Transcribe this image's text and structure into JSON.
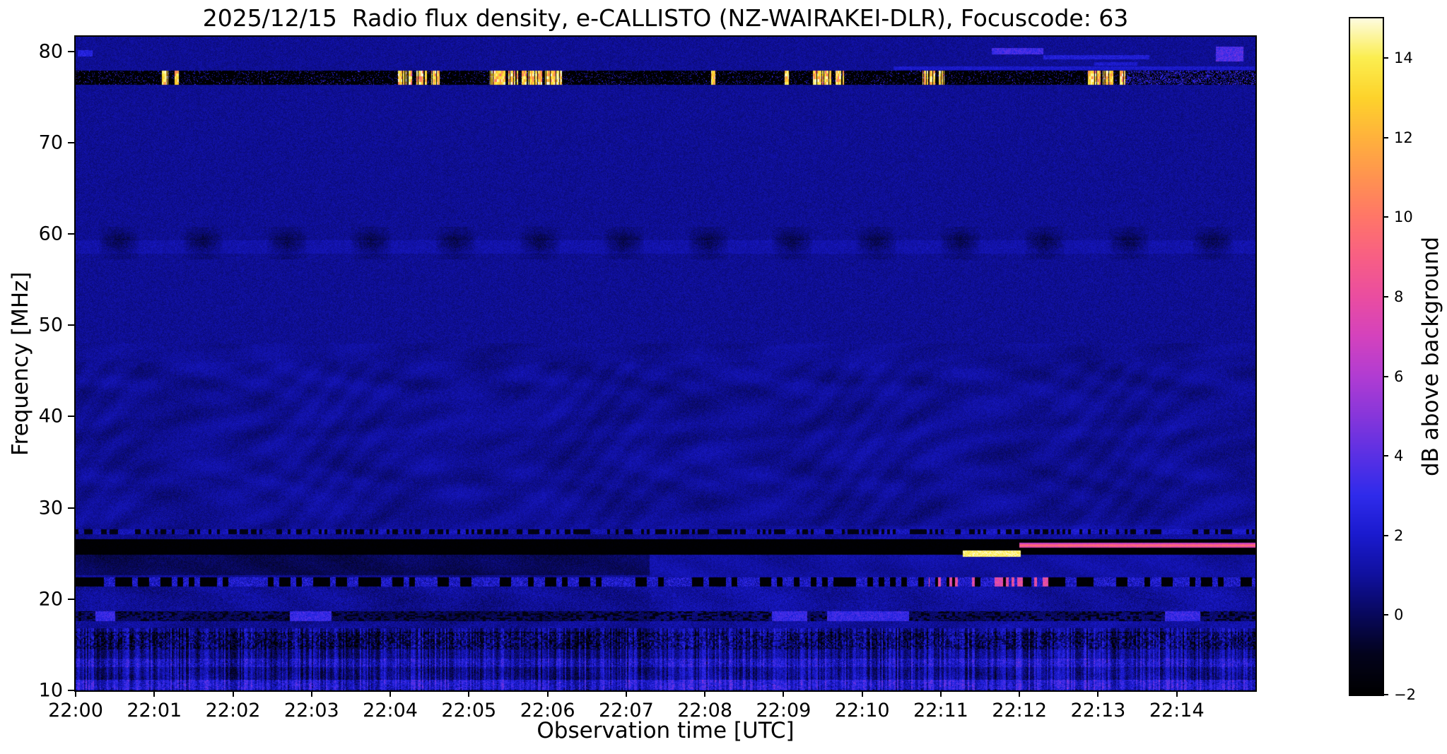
{
  "chart_data": {
    "type": "heatmap",
    "subtype": "solar-radio-spectrogram",
    "title": "2025/12/15  Radio flux density, e-CALLISTO (NZ-WAIRAKEI-DLR), Focuscode: 63",
    "xlabel": "Observation time [UTC]",
    "ylabel": "Frequency [MHz]",
    "date": "2025/12/15",
    "station": "NZ-WAIRAKEI-DLR",
    "focuscode": "63",
    "x_start": "22:00",
    "x_end_minute": 15,
    "x_tick_labels": [
      "22:00",
      "22:01",
      "22:02",
      "22:03",
      "22:04",
      "22:05",
      "22:06",
      "22:07",
      "22:08",
      "22:09",
      "22:10",
      "22:11",
      "22:12",
      "22:13",
      "22:14"
    ],
    "f_min": 10,
    "f_max": 81.6,
    "y_ticks": [
      10,
      20,
      30,
      40,
      50,
      60,
      70,
      80
    ],
    "colorbar": {
      "label": "dB above background",
      "min_db": -2,
      "max_db": 15,
      "ticks": [
        {
          "value": 14,
          "label": "14"
        },
        {
          "value": 12,
          "label": "12"
        },
        {
          "value": 10,
          "label": "10"
        },
        {
          "value": 8,
          "label": "8"
        },
        {
          "value": 6,
          "label": "6"
        },
        {
          "value": 4,
          "label": "4"
        },
        {
          "value": 2,
          "label": "2"
        },
        {
          "value": 0,
          "label": "0"
        },
        {
          "value": -2,
          "label": "−2"
        }
      ],
      "gradient_stops": [
        [
          -2.0,
          "#000000"
        ],
        [
          -1.0,
          "#03031c"
        ],
        [
          0.0,
          "#08085c"
        ],
        [
          1.0,
          "#10109e"
        ],
        [
          2.0,
          "#1a1ace"
        ],
        [
          3.0,
          "#2f2beb"
        ],
        [
          4.0,
          "#5a30e4"
        ],
        [
          5.0,
          "#8736da"
        ],
        [
          6.0,
          "#b13cd2"
        ],
        [
          7.0,
          "#d442bd"
        ],
        [
          8.0,
          "#ea4da0"
        ],
        [
          9.0,
          "#f85f84"
        ],
        [
          10.0,
          "#ff7668"
        ],
        [
          11.0,
          "#ff9350"
        ],
        [
          12.0,
          "#ffb23c"
        ],
        [
          13.0,
          "#fdd32b"
        ],
        [
          14.0,
          "#fbee50"
        ],
        [
          15.0,
          "#fdfbe0"
        ]
      ]
    },
    "render": {
      "base_db": 0.85,
      "noise_db": 0.5
    },
    "features": {
      "blanked_rfi_band_75mhz": {
        "desc": "blanked horizontal RFI channel near 76-78 MHz with intermittent bright broadband bursts",
        "f_range": [
          76.3,
          77.9
        ],
        "base_db": -2,
        "speckle_prob": 0.1,
        "speckle_db": [
          0.5,
          4.0
        ],
        "dense_speckle_after_min": 13.35,
        "burst_t_ranges": [
          [
            1.1,
            1.18
          ],
          [
            1.26,
            1.33
          ],
          [
            4.1,
            4.28
          ],
          [
            4.33,
            4.47
          ],
          [
            4.52,
            4.63
          ],
          [
            5.27,
            5.46
          ],
          [
            5.5,
            5.63
          ],
          [
            5.67,
            5.93
          ],
          [
            5.97,
            6.18
          ],
          [
            8.07,
            8.13
          ],
          [
            9.01,
            9.07
          ],
          [
            9.36,
            9.63
          ],
          [
            9.66,
            9.77
          ],
          [
            10.77,
            10.93
          ],
          [
            10.96,
            11.05
          ],
          [
            12.87,
            13.03
          ],
          [
            13.06,
            13.19
          ],
          [
            13.27,
            13.35
          ]
        ],
        "burst_db": [
          9,
          15
        ]
      },
      "dark_patches_59mhz": {
        "desc": "quasi-periodic dark absorption patches around 58-60 MHz, roughly once per minute",
        "f_range": [
          57.2,
          60.8
        ],
        "period_min": 1.07,
        "first_center_min": 0.55,
        "width_min": 0.52,
        "depth_db": 1.9
      },
      "faint_band_58mhz": {
        "f_range": [
          57.8,
          59.3
        ],
        "boost_db": 0.55
      },
      "blanked_band_26mhz": {
        "desc": "solid black blanked band near 25-26.5 MHz across full duration",
        "f_range": [
          24.9,
          26.6
        ],
        "base_db": -2
      },
      "dotted_line_27mhz": {
        "f_range": [
          27.1,
          27.65
        ]
      },
      "dark_region_left_lowfreq": {
        "f_range": [
          22.6,
          24.9
        ],
        "t_range": [
          0,
          7.3
        ],
        "delta_db": -0.9
      },
      "burst_yellow_25mhz": {
        "desc": "bright yellow-white narrowband emission near 25 MHz from ~22:11.3 to 22:12",
        "t_range": [
          11.28,
          12.02
        ],
        "f_range": [
          24.65,
          25.35
        ],
        "db_level": 13.5
      },
      "drift_pink_26mhz": {
        "desc": "pink narrowband emission near 26 MHz from ~22:12 to end of plot",
        "t_range": [
          12.0,
          15.0
        ],
        "f_range": [
          25.6,
          26.15
        ]
      },
      "dotted_band_22mhz": {
        "f_range": [
          21.4,
          22.4
        ],
        "dash_db": -2,
        "dot_db": [
          0.5,
          3.5
        ],
        "pink_t_range": [
          10.85,
          12.4
        ],
        "pink_db": [
          6,
          9.5
        ]
      },
      "dark_band_18mhz": {
        "f_range": [
          17.55,
          18.65
        ],
        "delta_db": -0.9,
        "blob_t_ranges": [
          [
            0.25,
            0.5
          ],
          [
            2.72,
            3.25
          ],
          [
            8.85,
            9.3
          ],
          [
            9.55,
            10.6
          ],
          [
            13.85,
            14.3
          ]
        ],
        "blob_db": 3.6
      },
      "low_freq_noise": {
        "desc": "strong speckled vertical-striped interference below ~17 MHz",
        "f_range": [
          10,
          16.8
        ],
        "stripe_db": 1.4,
        "dark_rows": [
          14.5,
          16.4
        ],
        "bright_rows_1": [
          12.55,
          13.45
        ],
        "bright_rows_2": [
          10.05,
          11.15
        ],
        "bright_db": 1.8
      },
      "interference_waves": {
        "f_max_mhz": 48,
        "amplitude_db": 0.32
      },
      "top_streaks_near_80mhz": [
        {
          "t_range": [
            0.03,
            0.22
          ],
          "f_range": [
            79.4,
            80.1
          ],
          "db_level": 2.8
        },
        {
          "t_range": [
            11.65,
            12.3
          ],
          "f_range": [
            79.7,
            80.35
          ],
          "db_level": 3.8
        },
        {
          "t_range": [
            12.3,
            13.65
          ],
          "f_range": [
            79.1,
            79.6
          ],
          "db_level": 2.6
        },
        {
          "t_range": [
            12.95,
            13.5
          ],
          "f_range": [
            78.4,
            78.8
          ],
          "db_level": 2.3
        },
        {
          "t_range": [
            14.5,
            14.85
          ],
          "f_range": [
            78.9,
            80.5
          ],
          "db_level": 4.2
        },
        {
          "t_range": [
            10.4,
            14.99
          ],
          "f_range": [
            78.0,
            78.35
          ],
          "db_level": 2.2
        }
      ],
      "right_side_brightening": {
        "t_min": 7.3,
        "f_max_mhz": 28,
        "delta_db": 0.25
      }
    }
  }
}
